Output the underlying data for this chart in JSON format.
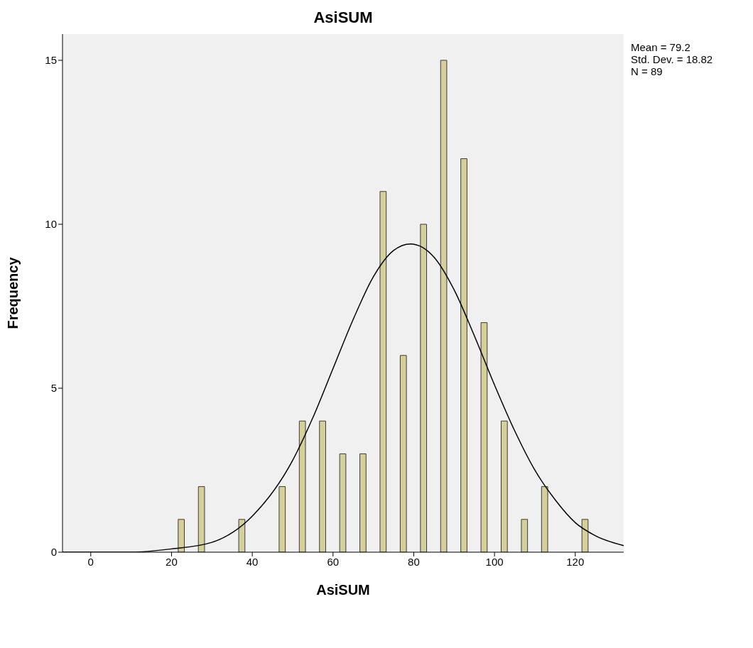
{
  "chart_data": {
    "type": "histogram",
    "title": "AsiSUM",
    "xlabel": "AsiSUM",
    "ylabel": "Frequency",
    "bins": [
      20,
      25,
      30,
      35,
      40,
      45,
      50,
      55,
      60,
      65,
      70,
      75,
      80,
      85,
      90,
      95,
      100,
      105,
      110,
      115,
      120,
      125
    ],
    "values": [
      1,
      2,
      0,
      1,
      0,
      2,
      4,
      4,
      3,
      3,
      11,
      6,
      10,
      15,
      12,
      7,
      4,
      1,
      2,
      0,
      1
    ],
    "color": "#d5d09a",
    "xlim": [
      -7,
      132
    ],
    "ylim": [
      0,
      15.8
    ],
    "xticks": [
      0,
      20,
      40,
      60,
      80,
      100,
      120
    ],
    "yticks": [
      0,
      5,
      10,
      15
    ],
    "annotations": [
      "Mean = 79.2",
      "Std. Dev. = 18.82",
      "N = 89"
    ],
    "series": [
      {
        "type": "line",
        "color": "#000000",
        "x": [
          -7,
          10,
          20,
          30,
          40,
          50,
          55,
          60,
          65,
          70,
          75,
          79.2,
          85,
          90,
          95,
          100,
          105,
          110,
          115,
          120,
          125,
          132
        ],
        "values": [
          0,
          0,
          0.1,
          0.3,
          1.1,
          2.8,
          4.1,
          5.6,
          7.1,
          8.4,
          9.2,
          9.4,
          9.0,
          8.0,
          6.6,
          5.1,
          3.7,
          2.5,
          1.6,
          0.9,
          0.5,
          0.2
        ]
      }
    ]
  }
}
